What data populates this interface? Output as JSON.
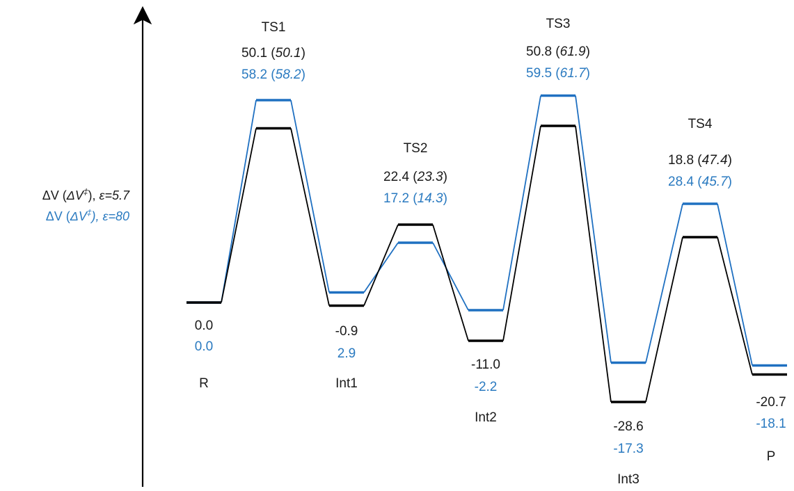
{
  "colors": {
    "series_eps57": "#000000",
    "series_eps80": "#1f70c1",
    "series_eps80_text": "#2a7ac0",
    "axis": "#000000"
  },
  "y_axis_label": {
    "line1": {
      "delta": "ΔV (",
      "mid": "ΔV",
      "sup": "‡",
      "close": "), ",
      "eps": "ε=5.7"
    },
    "line2": {
      "delta": "ΔV (",
      "mid": "ΔV",
      "sup": "‡",
      "close": "), ",
      "eps": "ε=80"
    }
  },
  "chart_data": {
    "type": "energy_profile",
    "title": "",
    "series": [
      {
        "name": "ΔV (ΔV‡), ε=5.7",
        "color": "#000000"
      },
      {
        "name": "ΔV (ΔV‡), ε=80",
        "color": "#1f70c1"
      }
    ],
    "states": [
      {
        "label": "R",
        "kind": "minimum",
        "eps57": {
          "value": "0.0",
          "barrier": null
        },
        "eps80": {
          "value": "0.0",
          "barrier": null
        }
      },
      {
        "label": "TS1",
        "kind": "transition",
        "eps57": {
          "value": "50.1",
          "barrier": "50.1"
        },
        "eps80": {
          "value": "58.2",
          "barrier": "58.2"
        }
      },
      {
        "label": "Int1",
        "kind": "minimum",
        "eps57": {
          "value": "-0.9",
          "barrier": null
        },
        "eps80": {
          "value": "2.9",
          "barrier": null
        }
      },
      {
        "label": "TS2",
        "kind": "transition",
        "eps57": {
          "value": "22.4",
          "barrier": "23.3"
        },
        "eps80": {
          "value": "17.2",
          "barrier": "14.3"
        }
      },
      {
        "label": "Int2",
        "kind": "minimum",
        "eps57": {
          "value": "-11.0",
          "barrier": null
        },
        "eps80": {
          "value": "-2.2",
          "barrier": null
        }
      },
      {
        "label": "TS3",
        "kind": "transition",
        "eps57": {
          "value": "50.8",
          "barrier": "61.9"
        },
        "eps80": {
          "value": "59.5",
          "barrier": "61.7"
        }
      },
      {
        "label": "Int3",
        "kind": "minimum",
        "eps57": {
          "value": "-28.6",
          "barrier": null
        },
        "eps80": {
          "value": "-17.3",
          "barrier": null
        }
      },
      {
        "label": "TS4",
        "kind": "transition",
        "eps57": {
          "value": "18.8",
          "barrier": "47.4"
        },
        "eps80": {
          "value": "28.4",
          "barrier": "45.7"
        }
      },
      {
        "label": "P",
        "kind": "minimum",
        "eps57": {
          "value": "-20.7",
          "barrier": null
        },
        "eps80": {
          "value": "-18.1",
          "barrier": null
        }
      }
    ]
  }
}
